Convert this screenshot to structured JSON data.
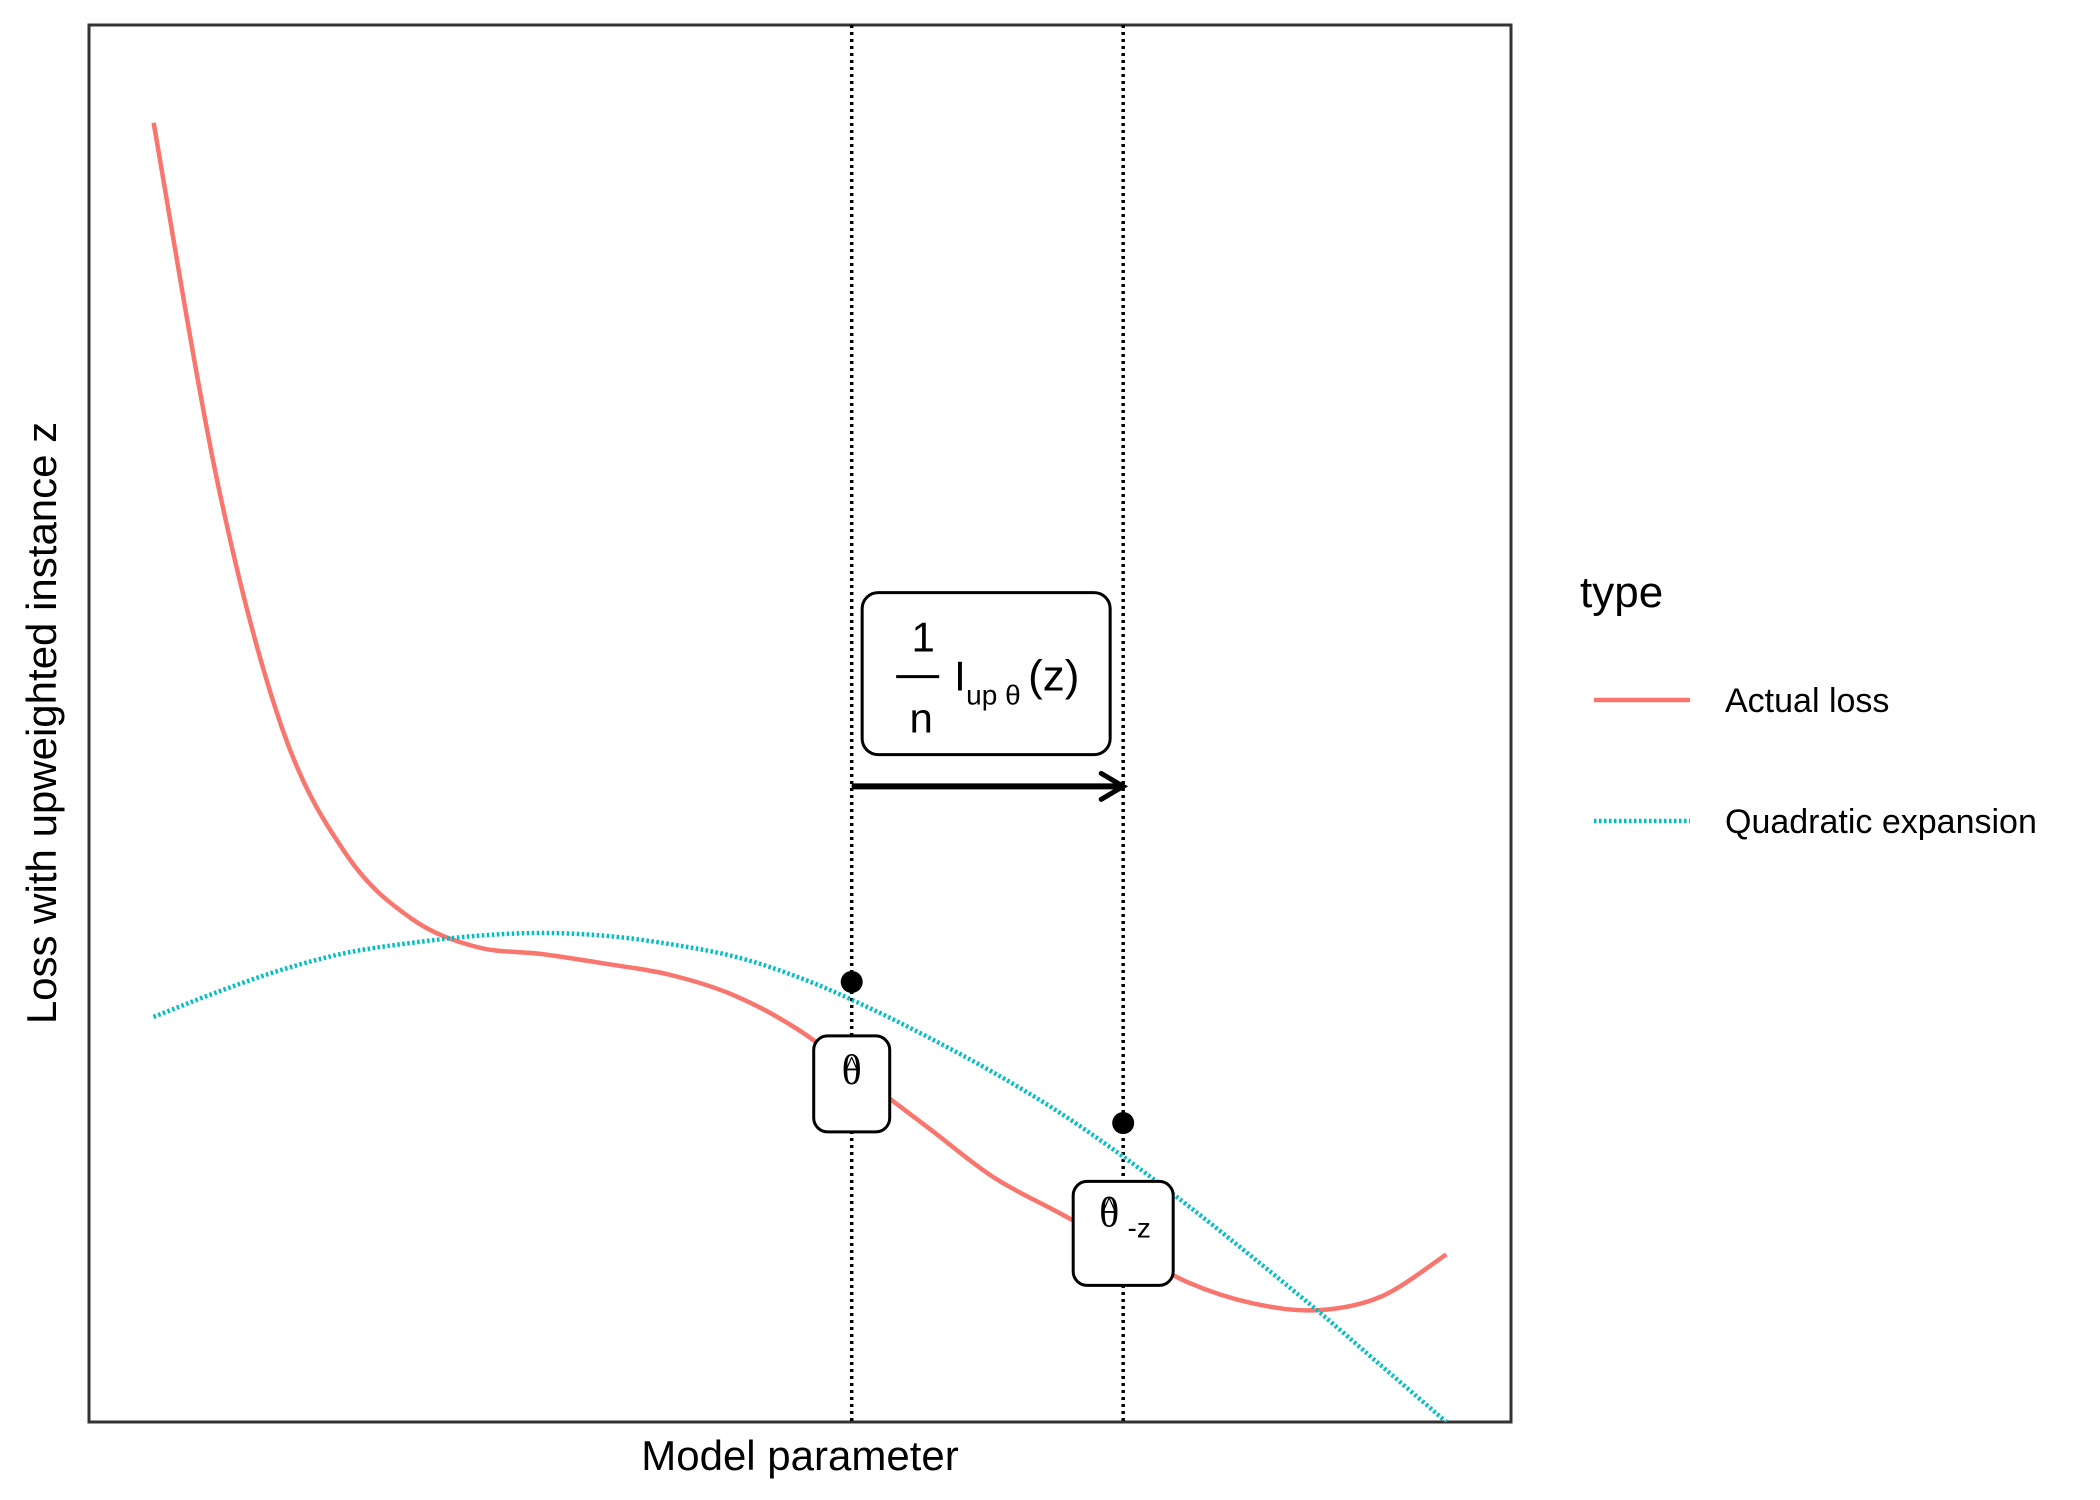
{
  "chart_data": {
    "type": "line",
    "xlabel": "Model parameter",
    "ylabel": "Loss with upweighted instance z",
    "x_ticks_shown": false,
    "y_ticks_shown": false,
    "grid": false,
    "xlim": [
      -0.25,
      5.25
    ],
    "ylim": [
      -3.5,
      6.5
    ],
    "legend": {
      "title": "type",
      "placement": "right",
      "entries": [
        {
          "label": "Actual loss",
          "color": "#F8766D",
          "linestyle": "solid"
        },
        {
          "label": "Quadratic expansion",
          "color": "#00BFC4",
          "linestyle": "dotted"
        }
      ]
    },
    "series": [
      {
        "name": "Actual loss",
        "color": "#F8766D",
        "linestyle": "solid",
        "x": [
          0,
          0.25,
          0.5,
          0.75,
          1,
          1.25,
          1.5,
          1.75,
          2,
          2.25,
          2.5,
          2.75,
          3,
          3.25,
          3.5,
          3.75,
          4,
          4.25,
          4.5,
          4.75,
          5
        ],
        "y": [
          5.8,
          3.2,
          1.45,
          0.55,
          0.1,
          -0.1,
          -0.15,
          -0.22,
          -0.3,
          -0.45,
          -0.7,
          -1.05,
          -1.4,
          -1.75,
          -2.0,
          -2.25,
          -2.5,
          -2.65,
          -2.7,
          -2.6,
          -2.3
        ]
      },
      {
        "name": "Quadratic expansion",
        "color": "#00BFC4",
        "linestyle": "dotted",
        "x": [
          0,
          0.25,
          0.5,
          0.75,
          1,
          1.25,
          1.5,
          1.75,
          2,
          2.25,
          2.5,
          2.75,
          3,
          3.25,
          3.5,
          3.75,
          4,
          4.25,
          4.5,
          4.75,
          5
        ],
        "y": [
          -0.6,
          -0.42,
          -0.26,
          -0.14,
          -0.07,
          -0.02,
          0.0,
          -0.02,
          -0.08,
          -0.17,
          -0.32,
          -0.52,
          -0.75,
          -1.0,
          -1.28,
          -1.6,
          -1.95,
          -2.32,
          -2.7,
          -3.1,
          -3.5
        ]
      }
    ],
    "vertical_lines": [
      {
        "x": 2.7,
        "linestyle": "dotted",
        "color": "#000000"
      },
      {
        "x": 3.75,
        "linestyle": "dotted",
        "color": "#000000"
      }
    ],
    "points": [
      {
        "x": 2.7,
        "y": -0.35
      },
      {
        "x": 3.75,
        "y": -1.36
      }
    ],
    "arrow": {
      "x_start": 2.7,
      "x_end": 3.75,
      "y": 1.05
    },
    "annotations": {
      "shift": {
        "numerator": "1",
        "denominator": "n",
        "main": "I",
        "subscript": "up θ",
        "argument": "(z)",
        "x": 3.22,
        "y": 1.85
      },
      "theta_hat": {
        "symbol": "θ",
        "accent": "^",
        "x": 2.7,
        "y": -1.08
      },
      "theta_hat_minus_z": {
        "symbol": "θ",
        "accent": "^",
        "subscript": "-z",
        "x": 3.75,
        "y": -2.15
      }
    }
  }
}
